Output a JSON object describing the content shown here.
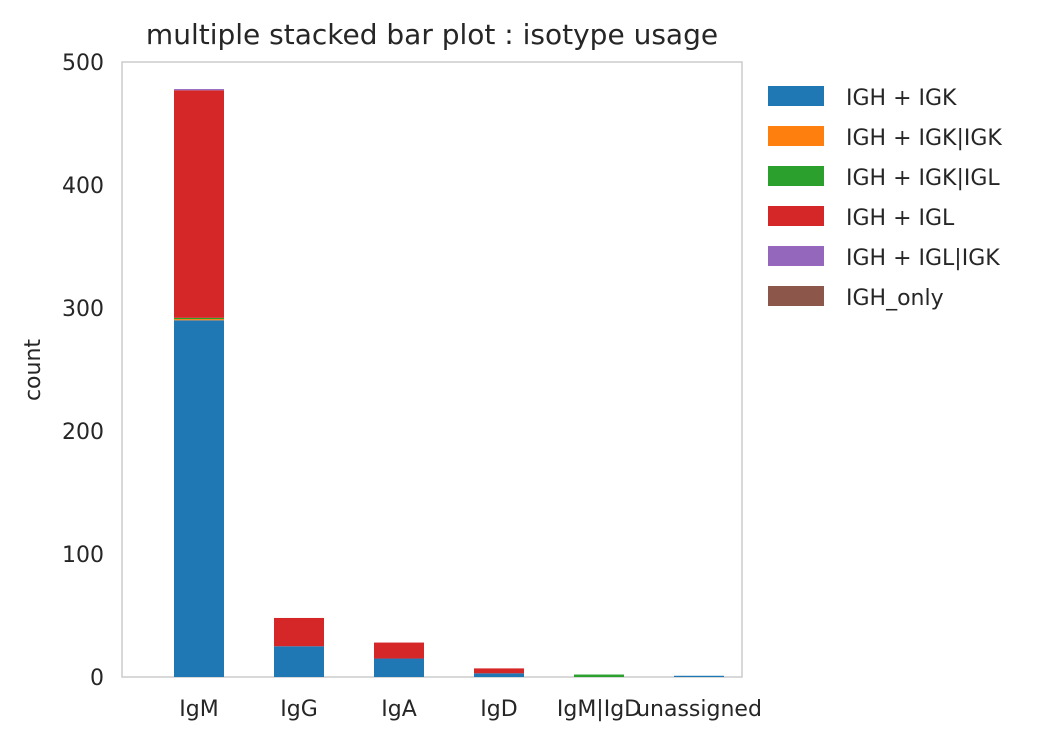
{
  "chart_data": {
    "type": "bar",
    "stacked": true,
    "title": "multiple stacked bar plot : isotype usage",
    "xlabel": "",
    "ylabel": "count",
    "ylim": [
      0,
      500
    ],
    "yticks": [
      "0",
      "100",
      "200",
      "300",
      "400",
      "500"
    ],
    "categories": [
      "IgM",
      "IgG",
      "IgA",
      "IgD",
      "IgM|IgD",
      "unassigned"
    ],
    "series": [
      {
        "name": "IGH + IGK",
        "color": "#1f77b4",
        "values": [
          290,
          25,
          15,
          3,
          0,
          1
        ]
      },
      {
        "name": "IGH + IGK|IGK",
        "color": "#ff7f0e",
        "values": [
          1,
          0,
          0,
          0,
          0,
          0
        ]
      },
      {
        "name": "IGH + IGK|IGL",
        "color": "#2ca02c",
        "values": [
          1,
          0,
          0,
          0,
          2,
          0
        ]
      },
      {
        "name": "IGH + IGL",
        "color": "#d62728",
        "values": [
          185,
          23,
          13,
          4,
          0,
          0
        ]
      },
      {
        "name": "IGH + IGL|IGK",
        "color": "#9467bd",
        "values": [
          1,
          0,
          0,
          0,
          0,
          0
        ]
      },
      {
        "name": "IGH_only",
        "color": "#8c564b",
        "values": [
          0,
          0,
          0,
          0,
          0,
          0
        ]
      }
    ],
    "grid": false,
    "legend_position": "outside-right"
  }
}
